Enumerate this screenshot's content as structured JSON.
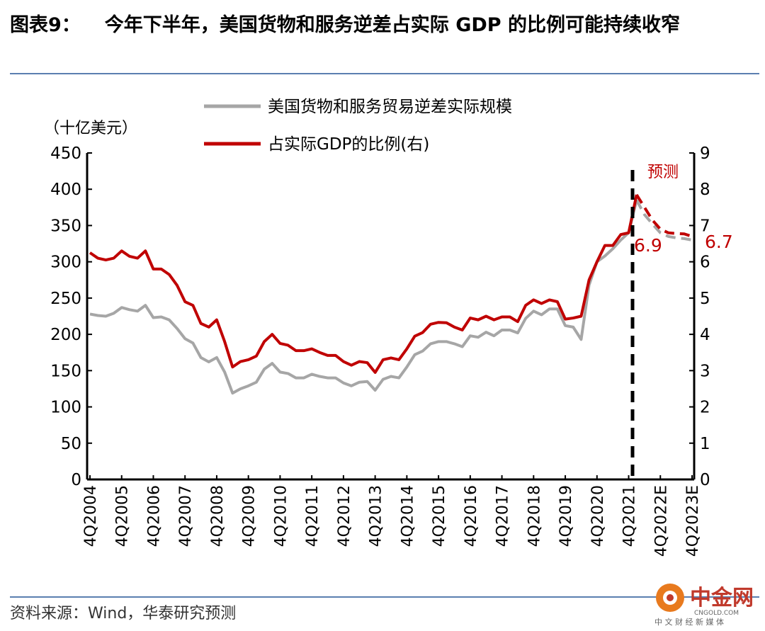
{
  "title": {
    "figure_no": "图表9：",
    "text": "今年下半年，美国货物和服务逆差占实际 GDP 的比例可能持续收窄"
  },
  "source": "资料来源：Wind，华泰研究预测",
  "watermark": {
    "name": "中金网",
    "domain": "CNGOLD.COM",
    "slogan": "中 文 财 经 新 媒 体"
  },
  "colors": {
    "grey": "#a6a6a6",
    "red": "#c00000",
    "rule": "#5b7fb0"
  },
  "chart_data": {
    "type": "line",
    "left_unit": "（十亿美元）",
    "ylim_left": [
      0,
      450
    ],
    "yticks_left": [
      "0",
      "50",
      "100",
      "150",
      "200",
      "250",
      "300",
      "350",
      "400",
      "450"
    ],
    "ylim_right": [
      0,
      9
    ],
    "yticks_right": [
      "0",
      "1",
      "2",
      "3",
      "4",
      "5",
      "6",
      "7",
      "8",
      "9"
    ],
    "xtick_labels": [
      "4Q2004",
      "4Q2005",
      "4Q2006",
      "4Q2007",
      "4Q2008",
      "4Q2009",
      "4Q2010",
      "4Q2011",
      "4Q2012",
      "4Q2013",
      "4Q2014",
      "4Q2015",
      "4Q2016",
      "4Q2017",
      "4Q2018",
      "4Q2019",
      "4Q2020",
      "4Q2021",
      "4Q2022E",
      "4Q2023E"
    ],
    "x_start": "4Q2004",
    "x_end": "4Q2023E",
    "frequency": "quarterly",
    "forecast_start": "1Q2022",
    "forecast_label": "预测",
    "annotations": [
      "6.9",
      "6.7"
    ],
    "series": [
      {
        "name": "美国货物和服务贸易逆差实际规模",
        "axis": "left",
        "color": "#a6a6a6",
        "values": [
          228,
          226,
          225,
          229,
          237,
          234,
          232,
          240,
          223,
          224,
          220,
          208,
          194,
          188,
          168,
          162,
          168,
          148,
          119,
          125,
          129,
          134,
          152,
          160,
          148,
          146,
          140,
          140,
          145,
          142,
          140,
          140,
          133,
          129,
          134,
          135,
          123,
          138,
          142,
          140,
          155,
          172,
          177,
          187,
          190,
          190,
          187,
          183,
          198,
          196,
          203,
          198,
          206,
          206,
          202,
          222,
          232,
          227,
          235,
          235,
          212,
          210,
          193,
          268,
          300,
          308,
          318,
          330,
          340,
          385,
          365,
          352,
          340,
          335,
          333,
          332,
          330
        ]
      },
      {
        "name": "占实际GDP的比例(右)",
        "axis": "right",
        "color": "#c00000",
        "values": [
          6.25,
          6.1,
          6.05,
          6.1,
          6.3,
          6.15,
          6.1,
          6.3,
          5.8,
          5.8,
          5.65,
          5.35,
          4.9,
          4.8,
          4.3,
          4.2,
          4.4,
          3.8,
          3.1,
          3.25,
          3.3,
          3.4,
          3.8,
          4.0,
          3.75,
          3.7,
          3.55,
          3.55,
          3.6,
          3.5,
          3.42,
          3.42,
          3.25,
          3.15,
          3.25,
          3.22,
          2.95,
          3.3,
          3.35,
          3.3,
          3.6,
          3.95,
          4.05,
          4.28,
          4.33,
          4.32,
          4.2,
          4.12,
          4.45,
          4.4,
          4.5,
          4.4,
          4.48,
          4.48,
          4.35,
          4.8,
          4.95,
          4.85,
          4.95,
          4.9,
          4.42,
          4.45,
          4.5,
          5.5,
          6.0,
          6.45,
          6.45,
          6.75,
          6.8,
          7.85,
          7.5,
          7.15,
          6.9,
          6.8,
          6.78,
          6.77,
          6.7
        ]
      }
    ]
  }
}
